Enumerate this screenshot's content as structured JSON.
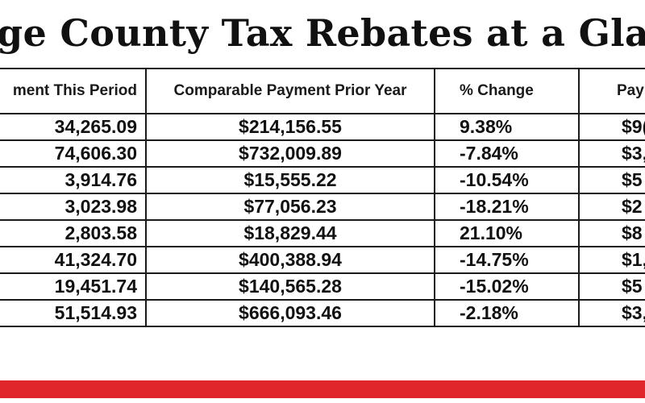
{
  "title": "ge County Tax Rebates at a Glance - May",
  "headers": [
    "ment This Period",
    "Comparable Payment Prior Year",
    "% Change",
    "Pay"
  ],
  "rows": [
    [
      "34,265.09",
      "$214,156.55",
      "9.38%",
      "$9("
    ],
    [
      "74,606.30",
      "$732,009.89",
      "-7.84%",
      "$3,"
    ],
    [
      "3,914.76",
      "$15,555.22",
      "-10.54%",
      "$5"
    ],
    [
      "3,023.98",
      "$77,056.23",
      "-18.21%",
      "$2"
    ],
    [
      "2,803.58",
      "$18,829.44",
      "21.10%",
      "$8"
    ],
    [
      "41,324.70",
      "$400,388.94",
      "-14.75%",
      "$1,"
    ],
    [
      "19,451.74",
      "$140,565.28",
      "-15.02%",
      "$5"
    ],
    [
      "51,514.93",
      "$666,093.46",
      "-2.18%",
      "$3,"
    ]
  ],
  "colors": {
    "accent_band": "#e0262b",
    "text": "#111111",
    "border": "#1a1a1a"
  }
}
